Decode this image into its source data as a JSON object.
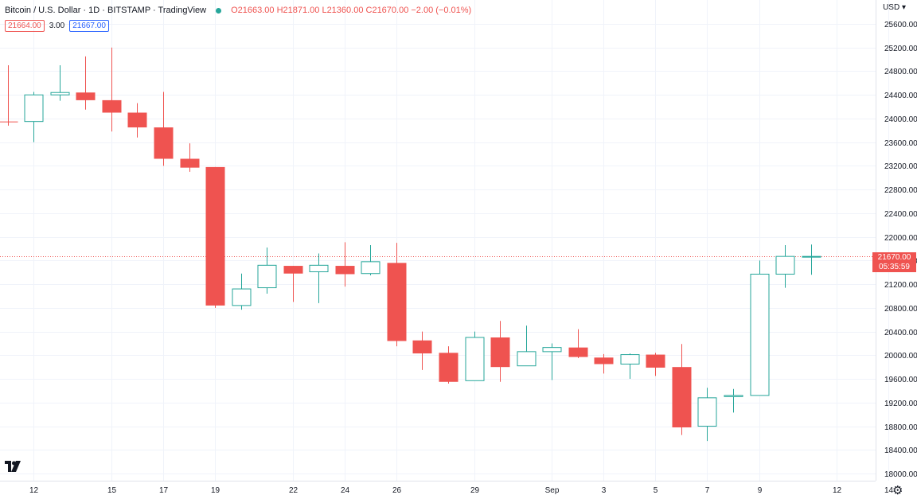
{
  "legend": {
    "symbol": "Bitcoin / U.S. Dollar · 1D · BITSTAMP · TradingView",
    "ohlc": "O21663.00 H21871.00 L21360.00 C21670.00 −2.00 (−0.01%)",
    "bid": "21664.00",
    "spread": "3.00",
    "ask": "21667.00"
  },
  "currency": "USD",
  "price_tag": {
    "price": "21670.00",
    "countdown": "05:35:59"
  },
  "colors": {
    "up": "#26a69a",
    "down": "#ef5350",
    "last_line": "#ef5350"
  },
  "icons": {
    "logo": "tradingview-logo-icon",
    "settings": "gear-icon"
  },
  "chart_data": {
    "type": "candlestick",
    "y_range": [
      18000,
      25800
    ],
    "y_ticks": [
      18000,
      18400,
      18800,
      19200,
      19600,
      20000,
      20400,
      20800,
      21200,
      21600,
      22000,
      22400,
      22800,
      23200,
      23600,
      24000,
      24400,
      24800,
      25200,
      25600
    ],
    "y_tick_labels": [
      "18000.00",
      "18400.00",
      "18800.00",
      "19200.00",
      "19600.00",
      "20000.00",
      "20400.00",
      "20800.00",
      "21200.00",
      "21600.00",
      "22000.00",
      "22400.00",
      "22800.00",
      "23200.00",
      "23600.00",
      "24000.00",
      "24400.00",
      "24800.00",
      "25200.00",
      "25600.00"
    ],
    "x_range": [
      -0.3,
      33.5
    ],
    "x_ticks": [
      {
        "i": 1,
        "label": "12"
      },
      {
        "i": 4,
        "label": "15"
      },
      {
        "i": 6,
        "label": "17"
      },
      {
        "i": 8,
        "label": "19"
      },
      {
        "i": 11,
        "label": "22"
      },
      {
        "i": 13,
        "label": "24"
      },
      {
        "i": 15,
        "label": "26"
      },
      {
        "i": 18,
        "label": "29"
      },
      {
        "i": 21,
        "label": "Sep"
      },
      {
        "i": 23,
        "label": "3"
      },
      {
        "i": 25,
        "label": "5"
      },
      {
        "i": 27,
        "label": "7"
      },
      {
        "i": 29,
        "label": "9"
      },
      {
        "i": 32,
        "label": "12"
      },
      {
        "i": 34,
        "label": "14"
      }
    ],
    "last_price": 21670,
    "candles": [
      {
        "o": 23950,
        "h": 24900,
        "l": 23880,
        "c": 23940
      },
      {
        "o": 23950,
        "h": 24450,
        "l": 23600,
        "c": 24400
      },
      {
        "o": 24400,
        "h": 24900,
        "l": 24300,
        "c": 24440
      },
      {
        "o": 24440,
        "h": 25050,
        "l": 24150,
        "c": 24310
      },
      {
        "o": 24310,
        "h": 25200,
        "l": 23780,
        "c": 24100
      },
      {
        "o": 24100,
        "h": 24260,
        "l": 23680,
        "c": 23850
      },
      {
        "o": 23850,
        "h": 24450,
        "l": 23200,
        "c": 23320
      },
      {
        "o": 23320,
        "h": 23580,
        "l": 23100,
        "c": 23170
      },
      {
        "o": 23180,
        "h": 23180,
        "l": 20800,
        "c": 20840
      },
      {
        "o": 20840,
        "h": 21380,
        "l": 20770,
        "c": 21120
      },
      {
        "o": 21140,
        "h": 21820,
        "l": 21040,
        "c": 21520
      },
      {
        "o": 21510,
        "h": 21510,
        "l": 20900,
        "c": 21380
      },
      {
        "o": 21410,
        "h": 21720,
        "l": 20880,
        "c": 21520
      },
      {
        "o": 21510,
        "h": 21910,
        "l": 21160,
        "c": 21370
      },
      {
        "o": 21380,
        "h": 21860,
        "l": 21350,
        "c": 21580
      },
      {
        "o": 21560,
        "h": 21900,
        "l": 20150,
        "c": 20240
      },
      {
        "o": 20250,
        "h": 20400,
        "l": 19750,
        "c": 20030
      },
      {
        "o": 20040,
        "h": 20150,
        "l": 19520,
        "c": 19550
      },
      {
        "o": 19570,
        "h": 20400,
        "l": 19570,
        "c": 20300
      },
      {
        "o": 20300,
        "h": 20580,
        "l": 19550,
        "c": 19800
      },
      {
        "o": 19820,
        "h": 20500,
        "l": 19820,
        "c": 20060
      },
      {
        "o": 20060,
        "h": 20200,
        "l": 19580,
        "c": 20130
      },
      {
        "o": 20130,
        "h": 20440,
        "l": 19950,
        "c": 19970
      },
      {
        "o": 19960,
        "h": 20020,
        "l": 19690,
        "c": 19850
      },
      {
        "o": 19850,
        "h": 20030,
        "l": 19600,
        "c": 20010
      },
      {
        "o": 20010,
        "h": 20040,
        "l": 19650,
        "c": 19790
      },
      {
        "o": 19800,
        "h": 20190,
        "l": 18650,
        "c": 18780
      },
      {
        "o": 18800,
        "h": 19450,
        "l": 18550,
        "c": 19280
      },
      {
        "o": 19300,
        "h": 19430,
        "l": 19030,
        "c": 19320
      },
      {
        "o": 19320,
        "h": 21600,
        "l": 19320,
        "c": 21370
      },
      {
        "o": 21370,
        "h": 21860,
        "l": 21140,
        "c": 21670
      },
      {
        "o": 21663,
        "h": 21871,
        "l": 21360,
        "c": 21670
      }
    ]
  }
}
